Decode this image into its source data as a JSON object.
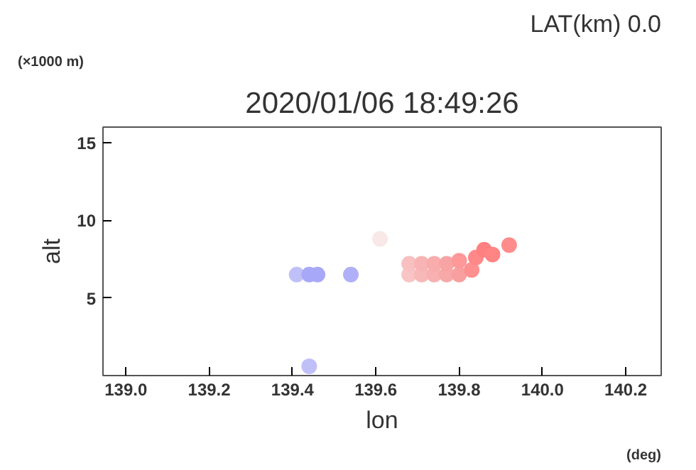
{
  "chart_data": {
    "type": "scatter",
    "title": "2020/01/06 18:49:26",
    "subtitle": "LAT(km) 0.0",
    "xlabel": "lon",
    "ylabel": "alt",
    "annotations": [
      "(×1000 m)",
      "(deg)"
    ],
    "x": [
      139.41,
      139.44,
      139.46,
      139.54,
      139.44,
      139.61,
      139.68,
      139.71,
      139.74,
      139.77,
      139.8,
      139.83,
      139.68,
      139.71,
      139.74,
      139.77,
      139.8,
      139.84,
      139.86,
      139.88,
      139.92
    ],
    "values": [
      6.5,
      6.5,
      6.5,
      6.5,
      0.6,
      8.8,
      6.5,
      6.5,
      6.5,
      6.5,
      6.5,
      6.8,
      7.2,
      7.2,
      7.2,
      7.2,
      7.4,
      7.6,
      8.1,
      7.8,
      8.4
    ],
    "colors": [
      "#c0c0f8",
      "#a8a8f8",
      "#a8a8f8",
      "#b0b0f8",
      "#c0c0f8",
      "#f8e8e8",
      "#f8c4c4",
      "#f8b8b8",
      "#f8b0b0",
      "#f8a8a8",
      "#f8a0a0",
      "#ff9090",
      "#f8c0c0",
      "#f8b4b4",
      "#f8acac",
      "#f8a4a4",
      "#ff9898",
      "#ff8888",
      "#ff8080",
      "#ff8484",
      "#ff8c8c"
    ],
    "marker": "circle",
    "xlim": [
      138.945,
      140.285
    ],
    "ylim": [
      0,
      16
    ],
    "xticks": [
      {
        "value": 139.0,
        "label": "139.0"
      },
      {
        "value": 139.2,
        "label": "139.2"
      },
      {
        "value": 139.4,
        "label": "139.4"
      },
      {
        "value": 139.6,
        "label": "139.6"
      },
      {
        "value": 139.8,
        "label": "139.8"
      },
      {
        "value": 140.0,
        "label": "140.0"
      },
      {
        "value": 140.2,
        "label": "140.2"
      }
    ],
    "yticks": [
      5,
      10,
      15
    ],
    "grid": false
  }
}
